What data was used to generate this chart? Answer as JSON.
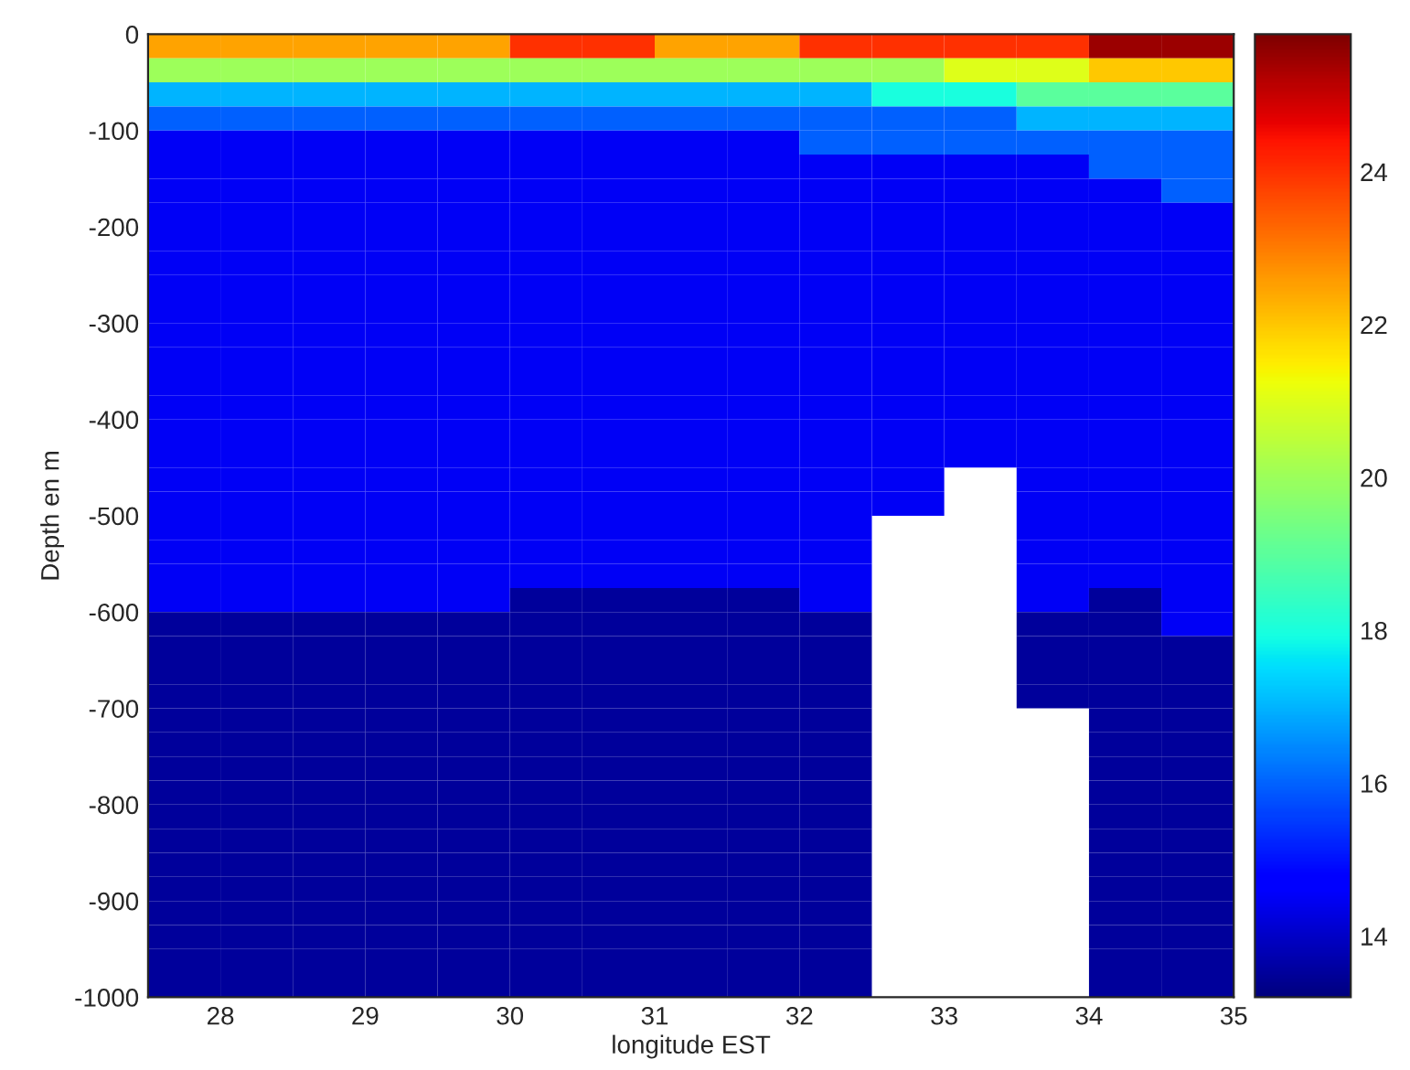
{
  "chart_data": {
    "type": "heatmap",
    "xlabel": "longitude EST",
    "ylabel": "Depth en m",
    "x": [
      27.75,
      28.25,
      28.75,
      29.25,
      29.75,
      30.25,
      30.75,
      31.25,
      31.75,
      32.25,
      32.75,
      33.25,
      33.75,
      34.25,
      34.75
    ],
    "y": [
      -12.5,
      -37.5,
      -62.5,
      -87.5,
      -112.5,
      -137.5,
      -162.5,
      -187.5,
      -212.5,
      -237.5,
      -262.5,
      -287.5,
      -312.5,
      -337.5,
      -362.5,
      -387.5,
      -412.5,
      -437.5,
      -462.5,
      -487.5,
      -512.5,
      -537.5,
      -562.5,
      -587.5,
      -612.5,
      -637.5,
      -662.5,
      -687.5,
      -712.5,
      -737.5,
      -762.5,
      -787.5,
      -812.5,
      -837.5,
      -862.5,
      -887.5,
      -912.5,
      -937.5,
      -962.5,
      -987.5
    ],
    "xlim": [
      27.5,
      35
    ],
    "xticks": [
      28,
      29,
      30,
      31,
      32,
      33,
      34,
      35
    ],
    "ylim": [
      -1000,
      0
    ],
    "yticks": [
      -1000,
      -900,
      -800,
      -700,
      -600,
      -500,
      -400,
      -300,
      -200,
      -100,
      0
    ],
    "clim": [
      13.2,
      25.8
    ],
    "cticks": [
      14,
      16,
      18,
      20,
      22,
      24
    ],
    "cells": [
      [
        22.5,
        22.5,
        22.5,
        22.5,
        22.5,
        24,
        24,
        22.5,
        22.5,
        24,
        24,
        24,
        24,
        25.5,
        25.5
      ],
      [
        20,
        20,
        20,
        20,
        20,
        20,
        20,
        20,
        20,
        20,
        20,
        21,
        21,
        22,
        22
      ],
      [
        17,
        17,
        17,
        17,
        17,
        17,
        17,
        17,
        17,
        17,
        18,
        18,
        19,
        19,
        19
      ],
      [
        16,
        16,
        16,
        16,
        16,
        16,
        16,
        16,
        16,
        16,
        16,
        16,
        17,
        17,
        17
      ],
      [
        14.5,
        14.5,
        14.5,
        14.5,
        14.5,
        14.5,
        14.5,
        14.5,
        14.5,
        16,
        16,
        16,
        16,
        16,
        16
      ],
      [
        14.5,
        14.5,
        14.5,
        14.5,
        14.5,
        14.5,
        14.5,
        14.5,
        14.5,
        14.5,
        14.5,
        14.5,
        14.5,
        16,
        16
      ],
      [
        14.5,
        14.5,
        14.5,
        14.5,
        14.5,
        14.5,
        14.5,
        14.5,
        14.5,
        14.5,
        14.5,
        14.5,
        14.5,
        14.5,
        16
      ],
      [
        14.5,
        14.5,
        14.5,
        14.5,
        14.5,
        14.5,
        14.5,
        14.5,
        14.5,
        14.5,
        14.5,
        14.5,
        14.5,
        14.5,
        14.5
      ],
      [
        14.5,
        14.5,
        14.5,
        14.5,
        14.5,
        14.5,
        14.5,
        14.5,
        14.5,
        14.5,
        14.5,
        14.5,
        14.5,
        14.5,
        14.5
      ],
      [
        14.5,
        14.5,
        14.5,
        14.5,
        14.5,
        14.5,
        14.5,
        14.5,
        14.5,
        14.5,
        14.5,
        14.5,
        14.5,
        14.5,
        14.5
      ],
      [
        14.5,
        14.5,
        14.5,
        14.5,
        14.5,
        14.5,
        14.5,
        14.5,
        14.5,
        14.5,
        14.5,
        14.5,
        14.5,
        14.5,
        14.5
      ],
      [
        14.5,
        14.5,
        14.5,
        14.5,
        14.5,
        14.5,
        14.5,
        14.5,
        14.5,
        14.5,
        14.5,
        14.5,
        14.5,
        14.5,
        14.5
      ],
      [
        14.5,
        14.5,
        14.5,
        14.5,
        14.5,
        14.5,
        14.5,
        14.5,
        14.5,
        14.5,
        14.5,
        14.5,
        14.5,
        14.5,
        14.5
      ],
      [
        14.5,
        14.5,
        14.5,
        14.5,
        14.5,
        14.5,
        14.5,
        14.5,
        14.5,
        14.5,
        14.5,
        14.5,
        14.5,
        14.5,
        14.5
      ],
      [
        14.5,
        14.5,
        14.5,
        14.5,
        14.5,
        14.5,
        14.5,
        14.5,
        14.5,
        14.5,
        14.5,
        14.5,
        14.5,
        14.5,
        14.5
      ],
      [
        14.5,
        14.5,
        14.5,
        14.5,
        14.5,
        14.5,
        14.5,
        14.5,
        14.5,
        14.5,
        14.5,
        14.5,
        14.5,
        14.5,
        14.5
      ],
      [
        14.5,
        14.5,
        14.5,
        14.5,
        14.5,
        14.5,
        14.5,
        14.5,
        14.5,
        14.5,
        14.5,
        14.5,
        14.5,
        14.5,
        14.5
      ],
      [
        14.5,
        14.5,
        14.5,
        14.5,
        14.5,
        14.5,
        14.5,
        14.5,
        14.5,
        14.5,
        14.5,
        14.5,
        14.5,
        14.5,
        14.5
      ],
      [
        14.5,
        14.5,
        14.5,
        14.5,
        14.5,
        14.5,
        14.5,
        14.5,
        14.5,
        14.5,
        14.5,
        null,
        14.5,
        14.5,
        14.5
      ],
      [
        14.5,
        14.5,
        14.5,
        14.5,
        14.5,
        14.5,
        14.5,
        14.5,
        14.5,
        14.5,
        14.5,
        null,
        14.5,
        14.5,
        14.5
      ],
      [
        14.5,
        14.5,
        14.5,
        14.5,
        14.5,
        14.5,
        14.5,
        14.5,
        14.5,
        14.5,
        null,
        null,
        14.5,
        14.5,
        14.5
      ],
      [
        14.5,
        14.5,
        14.5,
        14.5,
        14.5,
        14.5,
        14.5,
        14.5,
        14.5,
        14.5,
        null,
        null,
        14.5,
        14.5,
        14.5
      ],
      [
        14.5,
        14.5,
        14.5,
        14.5,
        14.5,
        14.5,
        14.5,
        14.5,
        14.5,
        14.5,
        null,
        null,
        14.5,
        14.5,
        14.5
      ],
      [
        14.5,
        14.5,
        14.5,
        14.5,
        14.5,
        13.5,
        13.5,
        13.5,
        13.5,
        14.5,
        null,
        null,
        14.5,
        13.5,
        14.5
      ],
      [
        13.5,
        13.5,
        13.5,
        13.5,
        13.5,
        13.5,
        13.5,
        13.5,
        13.5,
        13.5,
        null,
        null,
        13.5,
        13.5,
        14.5
      ],
      [
        13.5,
        13.5,
        13.5,
        13.5,
        13.5,
        13.5,
        13.5,
        13.5,
        13.5,
        13.5,
        null,
        null,
        13.5,
        13.5,
        13.5
      ],
      [
        13.5,
        13.5,
        13.5,
        13.5,
        13.5,
        13.5,
        13.5,
        13.5,
        13.5,
        13.5,
        null,
        null,
        13.5,
        13.5,
        13.5
      ],
      [
        13.5,
        13.5,
        13.5,
        13.5,
        13.5,
        13.5,
        13.5,
        13.5,
        13.5,
        13.5,
        null,
        null,
        13.5,
        13.5,
        13.5
      ],
      [
        13.5,
        13.5,
        13.5,
        13.5,
        13.5,
        13.5,
        13.5,
        13.5,
        13.5,
        13.5,
        null,
        null,
        null,
        13.5,
        13.5
      ],
      [
        13.5,
        13.5,
        13.5,
        13.5,
        13.5,
        13.5,
        13.5,
        13.5,
        13.5,
        13.5,
        null,
        null,
        null,
        13.5,
        13.5
      ],
      [
        13.5,
        13.5,
        13.5,
        13.5,
        13.5,
        13.5,
        13.5,
        13.5,
        13.5,
        13.5,
        null,
        null,
        null,
        13.5,
        13.5
      ],
      [
        13.5,
        13.5,
        13.5,
        13.5,
        13.5,
        13.5,
        13.5,
        13.5,
        13.5,
        13.5,
        null,
        null,
        null,
        13.5,
        13.5
      ],
      [
        13.5,
        13.5,
        13.5,
        13.5,
        13.5,
        13.5,
        13.5,
        13.5,
        13.5,
        13.5,
        null,
        null,
        null,
        13.5,
        13.5
      ],
      [
        13.5,
        13.5,
        13.5,
        13.5,
        13.5,
        13.5,
        13.5,
        13.5,
        13.5,
        13.5,
        null,
        null,
        null,
        13.5,
        13.5
      ],
      [
        13.5,
        13.5,
        13.5,
        13.5,
        13.5,
        13.5,
        13.5,
        13.5,
        13.5,
        13.5,
        null,
        null,
        null,
        13.5,
        13.5
      ],
      [
        13.5,
        13.5,
        13.5,
        13.5,
        13.5,
        13.5,
        13.5,
        13.5,
        13.5,
        13.5,
        null,
        null,
        null,
        13.5,
        13.5
      ],
      [
        13.5,
        13.5,
        13.5,
        13.5,
        13.5,
        13.5,
        13.5,
        13.5,
        13.5,
        13.5,
        null,
        null,
        null,
        13.5,
        13.5
      ],
      [
        13.5,
        13.5,
        13.5,
        13.5,
        13.5,
        13.5,
        13.5,
        13.5,
        13.5,
        13.5,
        null,
        null,
        null,
        13.5,
        13.5
      ],
      [
        13.5,
        13.5,
        13.5,
        13.5,
        13.5,
        13.5,
        13.5,
        13.5,
        13.5,
        13.5,
        null,
        null,
        null,
        13.5,
        13.5
      ],
      [
        13.5,
        13.5,
        13.5,
        13.5,
        13.5,
        13.5,
        13.5,
        13.5,
        13.5,
        13.5,
        null,
        null,
        null,
        13.5,
        13.5
      ]
    ]
  }
}
